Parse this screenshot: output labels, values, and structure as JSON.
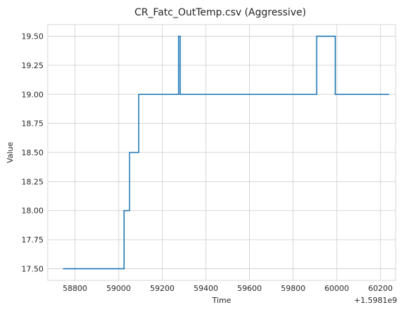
{
  "chart_data": {
    "type": "line",
    "title": "CR_Fatc_OutTemp.csv (Aggressive)",
    "xlabel": "Time",
    "ylabel": "Value",
    "x_offset_label": "+1.5981e9",
    "xlim": [
      58675,
      60270
    ],
    "ylim": [
      17.4,
      19.6
    ],
    "x_ticks": [
      58800,
      59000,
      59200,
      59400,
      59600,
      59800,
      60000,
      60200
    ],
    "y_ticks": [
      17.5,
      17.75,
      18.0,
      18.25,
      18.5,
      18.75,
      19.0,
      19.25,
      19.5
    ],
    "y_tick_labels": [
      "17.50",
      "17.75",
      "18.00",
      "18.25",
      "18.50",
      "18.75",
      "19.00",
      "19.25",
      "19.50"
    ],
    "x_tick_labels": [
      "58800",
      "59000",
      "59200",
      "59400",
      "59600",
      "59800",
      "60000",
      "60200"
    ],
    "grid": true,
    "series": [
      {
        "color": "#1f77b4",
        "step": true,
        "x": [
          58745,
          59025,
          59050,
          59092,
          59275,
          59282,
          59908,
          59993,
          60240
        ],
        "y": [
          17.5,
          18.0,
          18.5,
          19.0,
          19.5,
          19.0,
          19.5,
          19.0,
          19.0
        ]
      }
    ]
  }
}
